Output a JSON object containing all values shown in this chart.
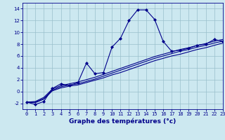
{
  "xlabel": "Graphe des températures (°c)",
  "xlim": [
    -0.5,
    23
  ],
  "ylim": [
    -3,
    15
  ],
  "xticks": [
    0,
    1,
    2,
    3,
    4,
    5,
    6,
    7,
    8,
    9,
    10,
    11,
    12,
    13,
    14,
    15,
    16,
    17,
    18,
    19,
    20,
    21,
    22,
    23
  ],
  "yticks": [
    -2,
    0,
    2,
    4,
    6,
    8,
    10,
    12,
    14
  ],
  "bg_color": "#cce8f0",
  "line_color": "#00008b",
  "grid_color": "#99bfcc",
  "curve1_x": [
    0,
    1,
    2,
    3,
    4,
    5,
    6,
    7,
    8,
    9,
    10,
    11,
    12,
    13,
    14,
    15,
    16,
    17,
    18,
    19,
    20,
    21,
    22,
    23
  ],
  "curve1_y": [
    -1.8,
    -2.2,
    -1.7,
    0.5,
    1.3,
    1.0,
    1.5,
    4.8,
    3.0,
    3.2,
    7.5,
    9.0,
    12.0,
    13.8,
    13.8,
    12.2,
    8.5,
    6.8,
    7.0,
    7.3,
    7.8,
    8.0,
    8.8,
    8.5
  ],
  "curve2_x": [
    0,
    1,
    2,
    3,
    4,
    5,
    6,
    7,
    8,
    9,
    10,
    11,
    12,
    13,
    14,
    15,
    16,
    17,
    18,
    19,
    20,
    21,
    22,
    23
  ],
  "curve2_y": [
    -1.8,
    -1.9,
    -1.3,
    0.1,
    0.6,
    0.9,
    1.1,
    1.5,
    1.9,
    2.3,
    2.8,
    3.2,
    3.7,
    4.2,
    4.7,
    5.2,
    5.6,
    6.0,
    6.3,
    6.7,
    7.1,
    7.4,
    7.8,
    8.2
  ],
  "curve3_x": [
    0,
    1,
    2,
    3,
    4,
    5,
    6,
    7,
    8,
    9,
    10,
    11,
    12,
    13,
    14,
    15,
    16,
    17,
    18,
    19,
    20,
    21,
    22,
    23
  ],
  "curve3_y": [
    -1.8,
    -1.8,
    -1.2,
    0.2,
    0.8,
    1.1,
    1.3,
    1.7,
    2.1,
    2.6,
    3.1,
    3.6,
    4.1,
    4.6,
    5.1,
    5.6,
    6.0,
    6.4,
    6.8,
    7.1,
    7.5,
    7.8,
    8.2,
    8.5
  ],
  "curve4_x": [
    0,
    1,
    2,
    3,
    4,
    5,
    6,
    7,
    8,
    9,
    10,
    11,
    12,
    13,
    14,
    15,
    16,
    17,
    18,
    19,
    20,
    21,
    22,
    23
  ],
  "curve4_y": [
    -1.8,
    -1.7,
    -1.0,
    0.4,
    1.0,
    1.3,
    1.6,
    2.0,
    2.4,
    2.9,
    3.4,
    3.9,
    4.4,
    4.9,
    5.4,
    5.9,
    6.3,
    6.7,
    7.1,
    7.4,
    7.8,
    8.1,
    8.5,
    8.8
  ],
  "marker": "D",
  "markersize": 2.0,
  "linewidth": 0.8,
  "tick_fontsize": 5.0,
  "label_fontsize": 6.5
}
